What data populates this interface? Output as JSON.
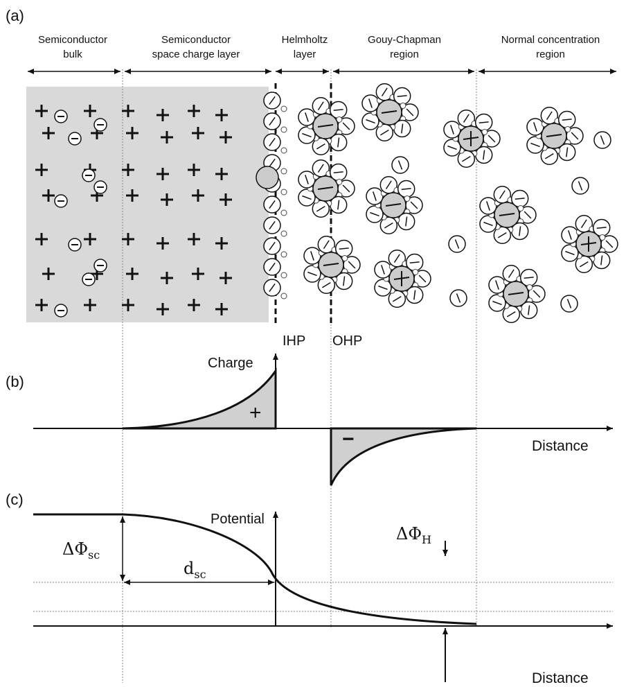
{
  "panel_a": {
    "label": "(a)",
    "regions": [
      {
        "lines": [
          "Semiconductor",
          "bulk"
        ]
      },
      {
        "lines": [
          "Semiconductor",
          "space charge layer"
        ]
      },
      {
        "lines": [
          "Helmholtz",
          "layer"
        ]
      },
      {
        "lines": [
          "Gouy-Chapman",
          "region"
        ]
      },
      {
        "lines": [
          "Normal concentration",
          "region"
        ]
      }
    ],
    "planes": [
      "IHP",
      "OHP"
    ]
  },
  "panel_b": {
    "label": "(b)",
    "y_axis": "Charge",
    "x_axis": "Distance",
    "signs": [
      "+",
      "−"
    ]
  },
  "panel_c": {
    "label": "(c)",
    "y_axis": "Potential",
    "x_axis": "Distance",
    "annotations": {
      "delta_phi_sc": {
        "symbol": "ΔΦ",
        "subscript": "sc"
      },
      "d_sc": {
        "symbol": "d",
        "subscript": "sc"
      },
      "delta_phi_h": {
        "symbol": "ΔΦ",
        "subscript": "H"
      }
    }
  }
}
